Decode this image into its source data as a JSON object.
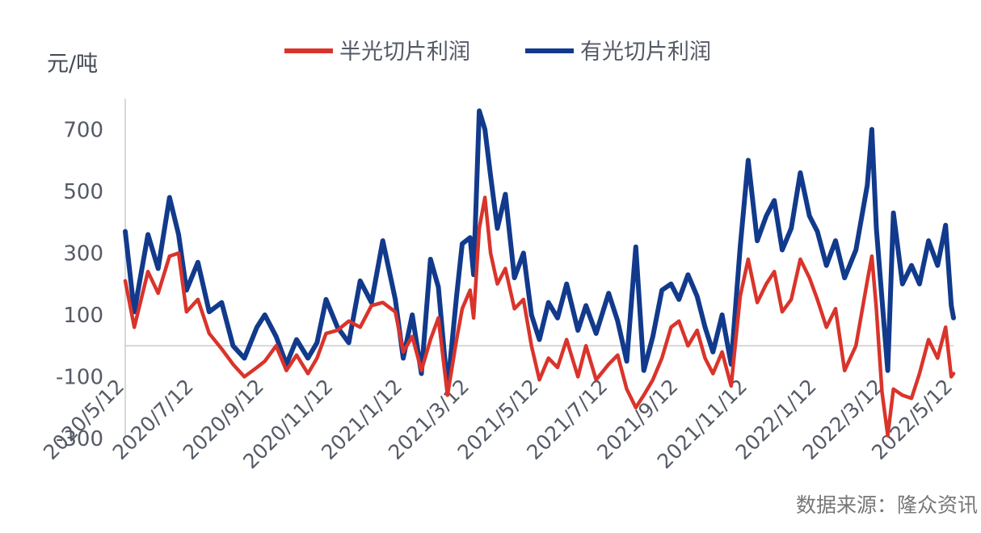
{
  "chart_data": {
    "type": "line",
    "ylabel": "元/吨",
    "ylim": [
      -300,
      800
    ],
    "yticks": [
      "-300",
      "-100",
      "100",
      "300",
      "500",
      "700"
    ],
    "ytick_values": [
      -300,
      -100,
      100,
      300,
      500,
      700
    ],
    "xticks": [
      "2020/5/12",
      "2020/7/12",
      "2020/9/12",
      "2020/11/12",
      "2021/1/12",
      "2021/3/12",
      "2021/5/12",
      "2021/7/12",
      "2021/9/12",
      "2021/11/12",
      "2022/1/12",
      "2022/3/12",
      "2022/5/12"
    ],
    "xlim": [
      "2020/5/12",
      "2022/5/12"
    ],
    "legend_position": "top",
    "grid": false,
    "zero_line": true,
    "source": "数据来源：隆众资讯",
    "series": [
      {
        "name": "半光切片利润",
        "color": "#d9342b",
        "points": [
          [
            "2020/5/12",
            210
          ],
          [
            "2020/5/20",
            60
          ],
          [
            "2020/6/1",
            240
          ],
          [
            "2020/6/10",
            170
          ],
          [
            "2020/6/20",
            290
          ],
          [
            "2020/6/28",
            300
          ],
          [
            "2020/7/5",
            110
          ],
          [
            "2020/7/15",
            150
          ],
          [
            "2020/7/25",
            40
          ],
          [
            "2020/8/5",
            -10
          ],
          [
            "2020/8/15",
            -60
          ],
          [
            "2020/8/25",
            -100
          ],
          [
            "2020/9/5",
            -70
          ],
          [
            "2020/9/12",
            -50
          ],
          [
            "2020/9/22",
            0
          ],
          [
            "2020/10/1",
            -80
          ],
          [
            "2020/10/10",
            -30
          ],
          [
            "2020/10/20",
            -90
          ],
          [
            "2020/10/28",
            -40
          ],
          [
            "2020/11/5",
            40
          ],
          [
            "2020/11/15",
            50
          ],
          [
            "2020/11/25",
            80
          ],
          [
            "2020/12/5",
            60
          ],
          [
            "2020/12/15",
            130
          ],
          [
            "2020/12/25",
            140
          ],
          [
            "2021/1/5",
            110
          ],
          [
            "2021/1/12",
            -20
          ],
          [
            "2021/1/20",
            30
          ],
          [
            "2021/1/28",
            -80
          ],
          [
            "2021/2/5",
            20
          ],
          [
            "2021/2/12",
            90
          ],
          [
            "2021/2/20",
            -160
          ],
          [
            "2021/2/28",
            20
          ],
          [
            "2021/3/5",
            120
          ],
          [
            "2021/3/12",
            180
          ],
          [
            "2021/3/15",
            90
          ],
          [
            "2021/3/20",
            380
          ],
          [
            "2021/3/25",
            480
          ],
          [
            "2021/3/30",
            300
          ],
          [
            "2021/4/5",
            200
          ],
          [
            "2021/4/12",
            250
          ],
          [
            "2021/4/20",
            120
          ],
          [
            "2021/4/28",
            150
          ],
          [
            "2021/5/5",
            0
          ],
          [
            "2021/5/12",
            -110
          ],
          [
            "2021/5/20",
            -40
          ],
          [
            "2021/5/28",
            -70
          ],
          [
            "2021/6/5",
            20
          ],
          [
            "2021/6/15",
            -100
          ],
          [
            "2021/6/22",
            0
          ],
          [
            "2021/7/1",
            -110
          ],
          [
            "2021/7/12",
            -60
          ],
          [
            "2021/7/20",
            -30
          ],
          [
            "2021/7/28",
            -140
          ],
          [
            "2021/8/5",
            -200
          ],
          [
            "2021/8/12",
            -160
          ],
          [
            "2021/8/20",
            -110
          ],
          [
            "2021/8/28",
            -40
          ],
          [
            "2021/9/5",
            60
          ],
          [
            "2021/9/12",
            80
          ],
          [
            "2021/9/20",
            0
          ],
          [
            "2021/9/28",
            50
          ],
          [
            "2021/10/5",
            -40
          ],
          [
            "2021/10/12",
            -90
          ],
          [
            "2021/10/20",
            -20
          ],
          [
            "2021/10/28",
            -130
          ],
          [
            "2021/11/5",
            160
          ],
          [
            "2021/11/12",
            280
          ],
          [
            "2021/11/20",
            140
          ],
          [
            "2021/11/28",
            200
          ],
          [
            "2021/12/5",
            240
          ],
          [
            "2021/12/12",
            110
          ],
          [
            "2021/12/20",
            150
          ],
          [
            "2021/12/28",
            280
          ],
          [
            "2022/1/5",
            220
          ],
          [
            "2022/1/12",
            150
          ],
          [
            "2022/1/20",
            60
          ],
          [
            "2022/1/28",
            120
          ],
          [
            "2022/2/5",
            -80
          ],
          [
            "2022/2/15",
            0
          ],
          [
            "2022/2/25",
            210
          ],
          [
            "2022/3/1",
            290
          ],
          [
            "2022/3/5",
            120
          ],
          [
            "2022/3/10",
            -150
          ],
          [
            "2022/3/15",
            -290
          ],
          [
            "2022/3/20",
            -140
          ],
          [
            "2022/3/28",
            -160
          ],
          [
            "2022/4/5",
            -170
          ],
          [
            "2022/4/12",
            -90
          ],
          [
            "2022/4/20",
            20
          ],
          [
            "2022/4/28",
            -40
          ],
          [
            "2022/5/5",
            60
          ],
          [
            "2022/5/10",
            -100
          ],
          [
            "2022/5/12",
            -90
          ]
        ]
      },
      {
        "name": "有光切片利润",
        "color": "#123a8c",
        "points": [
          [
            "2020/5/12",
            370
          ],
          [
            "2020/5/20",
            110
          ],
          [
            "2020/6/1",
            360
          ],
          [
            "2020/6/10",
            250
          ],
          [
            "2020/6/20",
            480
          ],
          [
            "2020/6/28",
            360
          ],
          [
            "2020/7/5",
            180
          ],
          [
            "2020/7/15",
            270
          ],
          [
            "2020/7/25",
            110
          ],
          [
            "2020/8/5",
            140
          ],
          [
            "2020/8/15",
            0
          ],
          [
            "2020/8/25",
            -40
          ],
          [
            "2020/9/5",
            60
          ],
          [
            "2020/9/12",
            100
          ],
          [
            "2020/9/22",
            30
          ],
          [
            "2020/10/1",
            -60
          ],
          [
            "2020/10/10",
            20
          ],
          [
            "2020/10/20",
            -40
          ],
          [
            "2020/10/28",
            10
          ],
          [
            "2020/11/5",
            150
          ],
          [
            "2020/11/15",
            60
          ],
          [
            "2020/11/25",
            10
          ],
          [
            "2020/12/5",
            210
          ],
          [
            "2020/12/15",
            140
          ],
          [
            "2020/12/25",
            340
          ],
          [
            "2021/1/5",
            150
          ],
          [
            "2021/1/12",
            -40
          ],
          [
            "2021/1/20",
            100
          ],
          [
            "2021/1/28",
            -90
          ],
          [
            "2021/2/5",
            280
          ],
          [
            "2021/2/12",
            190
          ],
          [
            "2021/2/20",
            -140
          ],
          [
            "2021/2/28",
            160
          ],
          [
            "2021/3/5",
            330
          ],
          [
            "2021/3/12",
            350
          ],
          [
            "2021/3/15",
            230
          ],
          [
            "2021/3/20",
            760
          ],
          [
            "2021/3/25",
            700
          ],
          [
            "2021/3/30",
            550
          ],
          [
            "2021/4/5",
            380
          ],
          [
            "2021/4/12",
            490
          ],
          [
            "2021/4/20",
            220
          ],
          [
            "2021/4/28",
            300
          ],
          [
            "2021/5/5",
            100
          ],
          [
            "2021/5/12",
            20
          ],
          [
            "2021/5/20",
            140
          ],
          [
            "2021/5/28",
            90
          ],
          [
            "2021/6/5",
            200
          ],
          [
            "2021/6/15",
            50
          ],
          [
            "2021/6/22",
            130
          ],
          [
            "2021/7/1",
            40
          ],
          [
            "2021/7/12",
            170
          ],
          [
            "2021/7/20",
            80
          ],
          [
            "2021/7/28",
            -50
          ],
          [
            "2021/8/5",
            320
          ],
          [
            "2021/8/12",
            -80
          ],
          [
            "2021/8/20",
            30
          ],
          [
            "2021/8/28",
            180
          ],
          [
            "2021/9/5",
            200
          ],
          [
            "2021/9/12",
            150
          ],
          [
            "2021/9/20",
            230
          ],
          [
            "2021/9/28",
            160
          ],
          [
            "2021/10/5",
            60
          ],
          [
            "2021/10/12",
            -20
          ],
          [
            "2021/10/20",
            100
          ],
          [
            "2021/10/28",
            -60
          ],
          [
            "2021/11/5",
            320
          ],
          [
            "2021/11/12",
            600
          ],
          [
            "2021/11/20",
            340
          ],
          [
            "2021/11/28",
            420
          ],
          [
            "2021/12/5",
            470
          ],
          [
            "2021/12/12",
            310
          ],
          [
            "2021/12/20",
            380
          ],
          [
            "2021/12/28",
            560
          ],
          [
            "2022/1/5",
            420
          ],
          [
            "2022/1/12",
            370
          ],
          [
            "2022/1/20",
            260
          ],
          [
            "2022/1/28",
            340
          ],
          [
            "2022/2/5",
            220
          ],
          [
            "2022/2/15",
            310
          ],
          [
            "2022/2/25",
            520
          ],
          [
            "2022/3/1",
            700
          ],
          [
            "2022/3/5",
            380
          ],
          [
            "2022/3/10",
            150
          ],
          [
            "2022/3/15",
            -80
          ],
          [
            "2022/3/20",
            430
          ],
          [
            "2022/3/28",
            200
          ],
          [
            "2022/4/5",
            260
          ],
          [
            "2022/4/12",
            200
          ],
          [
            "2022/4/20",
            340
          ],
          [
            "2022/4/28",
            260
          ],
          [
            "2022/5/5",
            390
          ],
          [
            "2022/5/10",
            130
          ],
          [
            "2022/5/12",
            90
          ]
        ]
      }
    ]
  }
}
